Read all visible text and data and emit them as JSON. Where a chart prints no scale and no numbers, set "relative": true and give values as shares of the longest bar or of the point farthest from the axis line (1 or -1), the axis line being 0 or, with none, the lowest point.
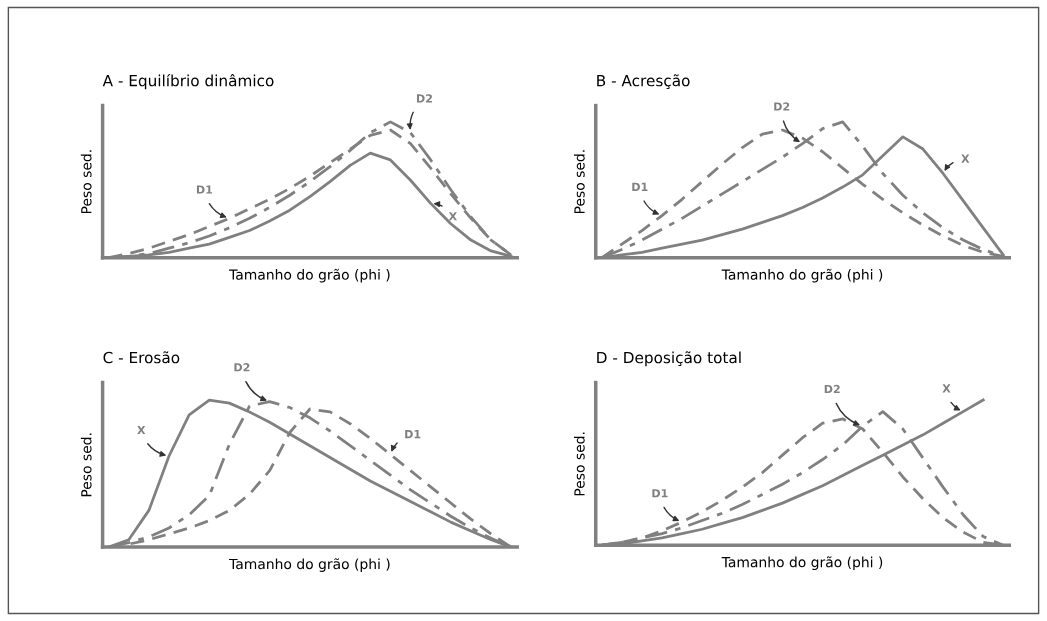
{
  "chart_data": [
    {
      "type": "line",
      "relative": true,
      "title": "A - Equilíbrio dinâmico",
      "xlabel": "Tamanho do grão (phi )",
      "ylabel": "Peso sed.",
      "tick_labels": false,
      "categories": [
        null,
        null,
        null,
        null,
        null,
        null,
        null,
        null,
        null,
        null,
        null,
        null,
        null,
        null,
        null,
        null,
        null,
        null,
        null,
        null,
        null
      ],
      "series": [
        {
          "name": "D1",
          "color": "#808080",
          "line_style": "dashed",
          "values": [
            0,
            0.03,
            0.07,
            0.12,
            0.17,
            0.23,
            0.29,
            0.36,
            0.43,
            0.51,
            0.6,
            0.7,
            0.8,
            0.9,
            0.94,
            0.84,
            0.66,
            0.47,
            0.29,
            0.13,
            0.02
          ]
        },
        {
          "name": "D2",
          "color": "#808080",
          "line_style": "dashdot",
          "values": [
            0,
            0.01,
            0.03,
            0.07,
            0.11,
            0.16,
            0.22,
            0.29,
            0.37,
            0.46,
            0.56,
            0.67,
            0.79,
            0.92,
            1.0,
            0.92,
            0.72,
            0.5,
            0.3,
            0.13,
            0.02
          ]
        },
        {
          "name": "X",
          "color": "#808080",
          "line_style": "solid",
          "values": [
            0,
            0.01,
            0.02,
            0.04,
            0.07,
            0.1,
            0.15,
            0.2,
            0.27,
            0.35,
            0.45,
            0.56,
            0.68,
            0.77,
            0.72,
            0.57,
            0.4,
            0.25,
            0.13,
            0.05,
            0.01
          ]
        }
      ]
    },
    {
      "type": "line",
      "relative": true,
      "title": "B - Acresção",
      "xlabel": "Tamanho do grão (phi )",
      "ylabel": "Peso sed.",
      "tick_labels": false,
      "categories": [
        null,
        null,
        null,
        null,
        null,
        null,
        null,
        null,
        null,
        null,
        null,
        null,
        null,
        null,
        null,
        null,
        null,
        null,
        null,
        null,
        null
      ],
      "series": [
        {
          "name": "D1",
          "color": "#808080",
          "line_style": "dashed",
          "values": [
            0,
            0.1,
            0.2,
            0.31,
            0.43,
            0.56,
            0.69,
            0.81,
            0.91,
            0.94,
            0.88,
            0.78,
            0.66,
            0.54,
            0.43,
            0.33,
            0.24,
            0.16,
            0.09,
            0.04,
            0.01
          ]
        },
        {
          "name": "D2",
          "color": "#808080",
          "line_style": "dashdot",
          "values": [
            0,
            0.06,
            0.13,
            0.21,
            0.29,
            0.38,
            0.47,
            0.56,
            0.65,
            0.74,
            0.84,
            0.95,
            1.0,
            0.82,
            0.62,
            0.46,
            0.33,
            0.22,
            0.13,
            0.06,
            0.01
          ]
        },
        {
          "name": "X",
          "color": "#808080",
          "line_style": "solid",
          "values": [
            0,
            0.02,
            0.04,
            0.07,
            0.1,
            0.13,
            0.17,
            0.21,
            0.26,
            0.31,
            0.37,
            0.44,
            0.52,
            0.61,
            0.75,
            0.89,
            0.8,
            0.62,
            0.42,
            0.22,
            0.02
          ]
        }
      ]
    },
    {
      "type": "line",
      "relative": true,
      "title": "C - Erosão",
      "xlabel": "Tamanho do grão (phi )",
      "ylabel": "Peso sed.",
      "tick_labels": false,
      "categories": [
        null,
        null,
        null,
        null,
        null,
        null,
        null,
        null,
        null,
        null,
        null,
        null,
        null,
        null,
        null,
        null,
        null,
        null,
        null,
        null,
        null
      ],
      "series": [
        {
          "name": "X",
          "color": "#808080",
          "line_style": "solid",
          "values": [
            0,
            0.05,
            0.25,
            0.62,
            0.9,
            1.0,
            0.98,
            0.92,
            0.85,
            0.77,
            0.69,
            0.61,
            0.53,
            0.45,
            0.38,
            0.31,
            0.24,
            0.17,
            0.11,
            0.05,
            0
          ]
        },
        {
          "name": "D2",
          "color": "#808080",
          "line_style": "dashdot",
          "values": [
            0,
            0.03,
            0.07,
            0.13,
            0.22,
            0.35,
            0.7,
            0.96,
            0.99,
            0.95,
            0.88,
            0.79,
            0.69,
            0.59,
            0.49,
            0.39,
            0.3,
            0.21,
            0.13,
            0.06,
            0
          ]
        },
        {
          "name": "D1",
          "color": "#808080",
          "line_style": "dashed",
          "values": [
            0,
            0.02,
            0.05,
            0.09,
            0.13,
            0.18,
            0.25,
            0.36,
            0.52,
            0.78,
            0.94,
            0.92,
            0.84,
            0.74,
            0.63,
            0.52,
            0.41,
            0.3,
            0.19,
            0.09,
            0
          ]
        }
      ]
    },
    {
      "type": "line",
      "relative": true,
      "title": "D - Deposição total",
      "xlabel": "Tamanho do grão (phi )",
      "ylabel": "Peso sed.",
      "tick_labels": false,
      "categories": [
        null,
        null,
        null,
        null,
        null,
        null,
        null,
        null,
        null,
        null,
        null,
        null,
        null,
        null,
        null,
        null,
        null,
        null,
        null,
        null,
        null
      ],
      "series": [
        {
          "name": "D1",
          "color": "#808080",
          "line_style": "dashed",
          "values": [
            0,
            0.02,
            0.05,
            0.1,
            0.16,
            0.23,
            0.31,
            0.4,
            0.5,
            0.62,
            0.74,
            0.84,
            0.87,
            0.8,
            0.64,
            0.47,
            0.32,
            0.19,
            0.09,
            0.02,
            0
          ]
        },
        {
          "name": "D2",
          "color": "#808080",
          "line_style": "dashdot",
          "values": [
            0,
            0.02,
            0.05,
            0.08,
            0.12,
            0.17,
            0.22,
            0.28,
            0.35,
            0.42,
            0.5,
            0.59,
            0.69,
            0.82,
            0.92,
            0.8,
            0.6,
            0.4,
            0.21,
            0.06,
            0
          ]
        },
        {
          "name": "X",
          "color": "#808080",
          "line_style": "solid",
          "values": [
            0,
            0.01,
            0.03,
            0.05,
            0.08,
            0.11,
            0.15,
            0.19,
            0.24,
            0.29,
            0.35,
            0.41,
            0.48,
            0.55,
            0.62,
            0.69,
            0.76,
            0.84,
            0.92,
            1.0,
            null
          ]
        }
      ]
    }
  ]
}
